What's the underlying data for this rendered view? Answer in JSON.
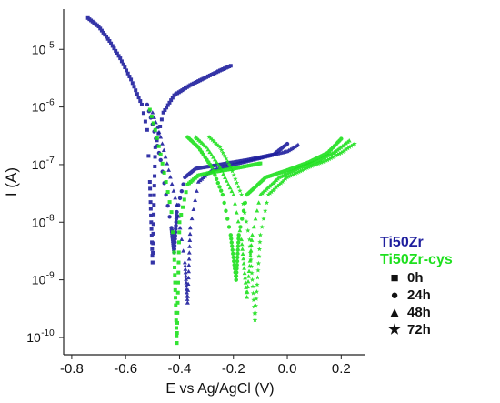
{
  "chart_data": {
    "type": "scatter",
    "title": "",
    "xlabel": "E vs Ag/AgCl (V)",
    "ylabel": "I (A)",
    "x_scale": "linear",
    "y_scale": "log",
    "xlim": [
      -0.83,
      0.29
    ],
    "ylim": [
      5e-11,
      5e-05
    ],
    "x_ticks": [
      -0.8,
      -0.6,
      -0.4,
      -0.2,
      0.0,
      0.2
    ],
    "x_tick_labels": [
      "-0.8",
      "-0.6",
      "-0.4",
      "-0.2",
      "0.0",
      "0.2"
    ],
    "y_ticks": [
      1e-10,
      1e-09,
      1e-08,
      1e-07,
      1e-06,
      1e-05
    ],
    "y_tick_labels": [
      {
        "base": "10",
        "exp": "-10"
      },
      {
        "base": "10",
        "exp": "-9"
      },
      {
        "base": "10",
        "exp": "-8"
      },
      {
        "base": "10",
        "exp": "-7"
      },
      {
        "base": "10",
        "exp": "-6"
      },
      {
        "base": "10",
        "exp": "-5"
      }
    ],
    "grid": false,
    "legend": {
      "placement": "bottom-right",
      "materials": [
        {
          "label": "Ti50Zr",
          "color": "#1f1f9e"
        },
        {
          "label": "Ti50Zr-cys",
          "color": "#1ee01e"
        }
      ],
      "markers": [
        {
          "symbol": "■",
          "label": "0h"
        },
        {
          "symbol": "●",
          "label": "24h"
        },
        {
          "symbol": "▲",
          "label": "48h"
        },
        {
          "symbol": "★",
          "label": "72h"
        }
      ]
    },
    "series": [
      {
        "name": "Ti50Zr 0h",
        "material": "Ti50Zr",
        "marker": "square",
        "color": "#1f1f9e",
        "ecorr": -0.5,
        "icorr": 2e-09,
        "cathodic": [
          [
            -0.74,
            3.5e-05
          ],
          [
            -0.7,
            2.5e-05
          ],
          [
            -0.66,
            1.4e-05
          ],
          [
            -0.62,
            7e-06
          ],
          [
            -0.58,
            3e-06
          ],
          [
            -0.54,
            1.1e-06
          ],
          [
            -0.52,
            4e-07
          ],
          [
            -0.51,
            5e-08
          ]
        ],
        "anodic": [
          [
            -0.49,
            2e-07
          ],
          [
            -0.46,
            8e-07
          ],
          [
            -0.42,
            1.6e-06
          ],
          [
            -0.36,
            2.4e-06
          ],
          [
            -0.3,
            3.3e-06
          ],
          [
            -0.25,
            4.3e-06
          ],
          [
            -0.21,
            5.2e-06
          ]
        ]
      },
      {
        "name": "Ti50Zr 24h",
        "material": "Ti50Zr",
        "marker": "circle",
        "color": "#1f1f9e",
        "ecorr": -0.42,
        "icorr": 3e-09,
        "cathodic": [
          [
            -0.52,
            1.1e-06
          ],
          [
            -0.5,
            5e-07
          ],
          [
            -0.47,
            1.2e-07
          ],
          [
            -0.45,
            3e-08
          ],
          [
            -0.43,
            8e-09
          ]
        ],
        "anodic": [
          [
            -0.41,
            1.5e-08
          ],
          [
            -0.38,
            6e-08
          ],
          [
            -0.34,
            8.5e-08
          ],
          [
            -0.25,
            1e-07
          ],
          [
            -0.15,
            1.2e-07
          ],
          [
            -0.05,
            1.5e-07
          ],
          [
            0.0,
            2.3e-07
          ]
        ]
      },
      {
        "name": "Ti50Zr 48h",
        "material": "Ti50Zr",
        "marker": "triangle",
        "color": "#1f1f9e",
        "ecorr": -0.37,
        "icorr": 4e-10,
        "cathodic": [
          [
            -0.5,
            8e-07
          ],
          [
            -0.47,
            3e-07
          ],
          [
            -0.44,
            8e-08
          ],
          [
            -0.41,
            2e-08
          ],
          [
            -0.38,
            2e-09
          ]
        ],
        "anodic": [
          [
            -0.36,
            8e-09
          ],
          [
            -0.33,
            5e-08
          ],
          [
            -0.28,
            8e-08
          ],
          [
            -0.2,
            1e-07
          ],
          [
            -0.1,
            1.3e-07
          ],
          [
            0.0,
            1.7e-07
          ],
          [
            0.04,
            2.2e-07
          ]
        ]
      },
      {
        "name": "Ti50Zr-cys 0h",
        "material": "Ti50Zr-cys",
        "marker": "square",
        "color": "#1ee01e",
        "ecorr": -0.41,
        "icorr": 8e-11,
        "cathodic": [
          [
            -0.51,
            9e-07
          ],
          [
            -0.49,
            4e-07
          ],
          [
            -0.47,
            1.5e-07
          ],
          [
            -0.45,
            5e-08
          ],
          [
            -0.43,
            1.5e-08
          ],
          [
            -0.42,
            3e-09
          ]
        ],
        "anodic": [
          [
            -0.4,
            1e-08
          ],
          [
            -0.37,
            4.5e-08
          ],
          [
            -0.33,
            6.5e-08
          ],
          [
            -0.27,
            7.5e-08
          ],
          [
            -0.2,
            8.5e-08
          ],
          [
            -0.1,
            1.05e-07
          ]
        ]
      },
      {
        "name": "Ti50Zr-cys 24h",
        "material": "Ti50Zr-cys",
        "marker": "circle",
        "color": "#1ee01e",
        "ecorr": -0.19,
        "icorr": 1e-09,
        "cathodic": [
          [
            -0.37,
            3e-07
          ],
          [
            -0.33,
            2e-07
          ],
          [
            -0.28,
            9e-08
          ],
          [
            -0.24,
            3e-08
          ],
          [
            -0.21,
            6e-09
          ]
        ],
        "anodic": [
          [
            -0.18,
            6e-09
          ],
          [
            -0.15,
            3e-08
          ],
          [
            -0.08,
            6e-08
          ],
          [
            0.0,
            8e-08
          ],
          [
            0.08,
            1.1e-07
          ],
          [
            0.15,
            1.6e-07
          ],
          [
            0.2,
            2.8e-07
          ]
        ]
      },
      {
        "name": "Ti50Zr-cys 48h",
        "material": "Ti50Zr-cys",
        "marker": "triangle",
        "color": "#1ee01e",
        "ecorr": -0.15,
        "icorr": 5e-10,
        "cathodic": [
          [
            -0.34,
            3e-07
          ],
          [
            -0.3,
            2e-07
          ],
          [
            -0.25,
            9e-08
          ],
          [
            -0.2,
            3e-08
          ],
          [
            -0.17,
            5e-09
          ]
        ],
        "anodic": [
          [
            -0.13,
            6e-09
          ],
          [
            -0.1,
            3e-08
          ],
          [
            -0.03,
            6e-08
          ],
          [
            0.05,
            9e-08
          ],
          [
            0.12,
            1.2e-07
          ],
          [
            0.18,
            1.7e-07
          ],
          [
            0.23,
            2.6e-07
          ]
        ]
      },
      {
        "name": "Ti50Zr-cys 72h",
        "material": "Ti50Zr-cys",
        "marker": "star",
        "color": "#1ee01e",
        "ecorr": -0.12,
        "icorr": 2e-10,
        "cathodic": [
          [
            -0.29,
            3e-07
          ],
          [
            -0.25,
            2e-07
          ],
          [
            -0.21,
            9e-08
          ],
          [
            -0.17,
            3e-08
          ],
          [
            -0.14,
            5e-09
          ]
        ],
        "anodic": [
          [
            -0.1,
            6e-09
          ],
          [
            -0.07,
            3e-08
          ],
          [
            0.0,
            6e-08
          ],
          [
            0.08,
            9e-08
          ],
          [
            0.15,
            1.2e-07
          ],
          [
            0.2,
            1.6e-07
          ],
          [
            0.25,
            2.3e-07
          ]
        ]
      }
    ]
  }
}
